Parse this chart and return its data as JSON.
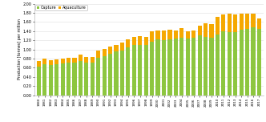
{
  "years": [
    1980,
    1981,
    1982,
    1983,
    1984,
    1985,
    1986,
    1987,
    1988,
    1989,
    1990,
    1991,
    1992,
    1993,
    1994,
    1995,
    1996,
    1997,
    1998,
    1999,
    2000,
    2001,
    2002,
    2003,
    2004,
    2005,
    2006,
    2007,
    2008,
    2009,
    2010,
    2011,
    2012,
    2013,
    2014,
    2015,
    2016,
    2017
  ],
  "capture": [
    0.63,
    0.68,
    0.66,
    0.68,
    0.7,
    0.71,
    0.72,
    0.75,
    0.72,
    0.72,
    0.82,
    0.85,
    0.9,
    0.95,
    0.98,
    1.05,
    1.09,
    1.1,
    1.1,
    1.17,
    1.22,
    1.21,
    1.22,
    1.23,
    1.26,
    1.23,
    1.25,
    1.3,
    1.27,
    1.25,
    1.33,
    1.39,
    1.38,
    1.38,
    1.43,
    1.44,
    1.49,
    1.45
  ],
  "aquaculture": [
    0.11,
    0.12,
    0.11,
    0.1,
    0.1,
    0.1,
    0.1,
    0.13,
    0.12,
    0.11,
    0.16,
    0.16,
    0.16,
    0.14,
    0.17,
    0.17,
    0.19,
    0.19,
    0.18,
    0.22,
    0.2,
    0.2,
    0.21,
    0.18,
    0.21,
    0.17,
    0.17,
    0.22,
    0.3,
    0.3,
    0.39,
    0.37,
    0.4,
    0.39,
    0.35,
    0.34,
    0.3,
    0.23
  ],
  "capture_color": "#8DC63F",
  "aquaculture_color": "#F5A800",
  "ylabel": "Production [tonnes] per million",
  "ylim": [
    0.0,
    2.0
  ],
  "yticks": [
    0.0,
    0.2,
    0.4,
    0.6,
    0.8,
    1.0,
    1.2,
    1.4,
    1.6,
    1.8,
    2.0
  ],
  "ytick_labels": [
    "0.00",
    "0.20",
    "0.40",
    "0.60",
    "0.80",
    "1.00",
    "1.20",
    "1.40",
    "1.60",
    "1.80",
    "2.00"
  ],
  "bg_color": "#FFFFFF",
  "grid_color": "#DDDDDD",
  "legend_capture": "Capture",
  "legend_aquaculture": "Aquaculture"
}
